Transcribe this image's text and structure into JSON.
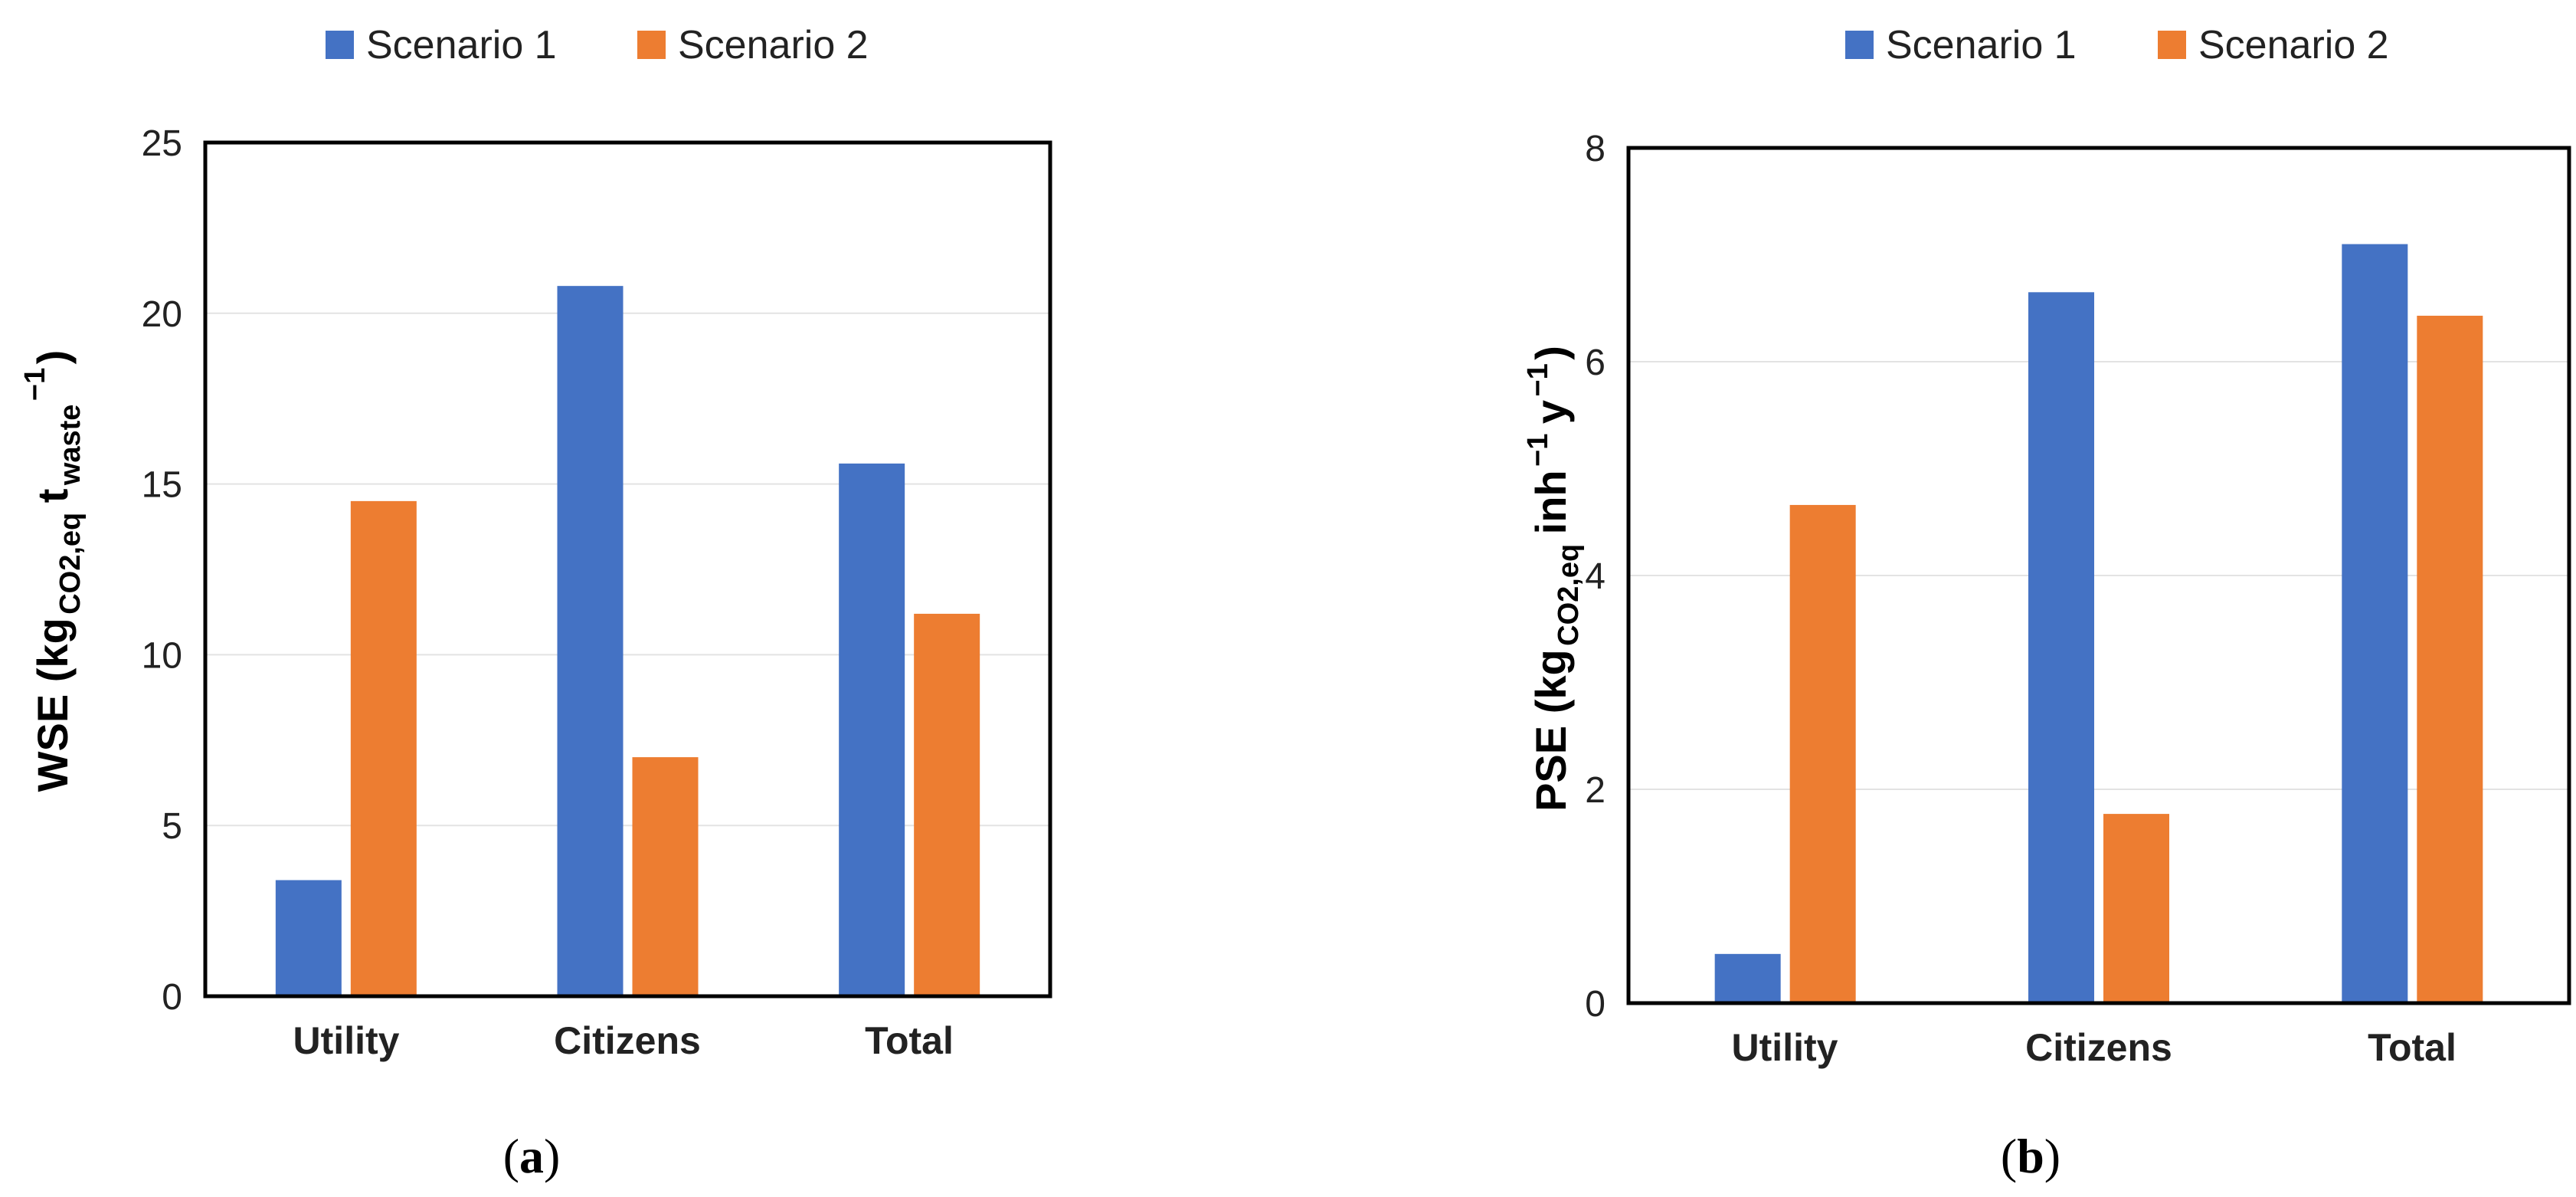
{
  "colors": {
    "scenario1": "#4472C4",
    "scenario2": "#ED7D31",
    "grid": "#E3E3E3",
    "axis": "#000000"
  },
  "chart_data": [
    {
      "type": "bar",
      "panel_label": "(a)",
      "panel_letter": "a",
      "categories": [
        "Utility",
        "Citizens",
        "Total"
      ],
      "series": [
        {
          "name": "Scenario 1",
          "values": [
            3.4,
            20.8,
            15.6
          ]
        },
        {
          "name": "Scenario 2",
          "values": [
            14.5,
            7.0,
            11.2
          ]
        }
      ],
      "ylim": [
        0,
        25
      ],
      "yticks": [
        "0",
        "5",
        "10",
        "15",
        "20",
        "25"
      ],
      "ylabel": {
        "main": "WSE (kg",
        "sub1": "CO2,eq",
        "mid": "t",
        "sub2": "waste",
        "sup": "−1",
        "close": ")"
      },
      "legend_position": "top",
      "grid": true
    },
    {
      "type": "bar",
      "panel_label": "(b)",
      "panel_letter": "b",
      "categories": [
        "Utility",
        "Citizens",
        "Total"
      ],
      "series": [
        {
          "name": "Scenario 1",
          "values": [
            0.46,
            6.65,
            7.1
          ]
        },
        {
          "name": "Scenario 2",
          "values": [
            4.66,
            1.77,
            6.43
          ]
        }
      ],
      "ylim": [
        0,
        8
      ],
      "yticks": [
        "0",
        "2",
        "4",
        "6",
        "8"
      ],
      "ylabel": {
        "main": "PSE (kg",
        "sub1": "CO2,eq",
        "mid": "inh",
        "sup1": "−1",
        "mid2": "y",
        "sup2": "−1",
        "close": ")"
      },
      "legend_position": "top",
      "grid": true
    }
  ]
}
